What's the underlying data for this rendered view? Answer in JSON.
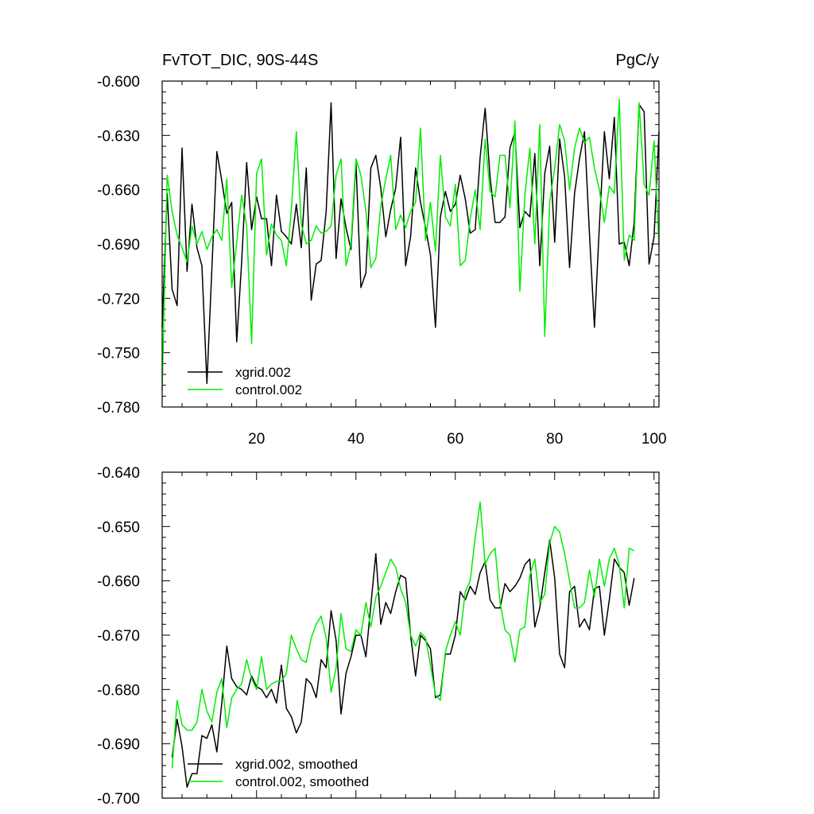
{
  "chart_data": [
    {
      "type": "line",
      "title": "FvTOT_DIC, 90S-44S",
      "units": "PgC/y",
      "xlabel": "",
      "ylabel": "",
      "xlim": [
        1,
        101
      ],
      "ylim": [
        -0.78,
        -0.6
      ],
      "yticks": [
        "-0.600",
        "-0.630",
        "-0.660",
        "-0.690",
        "-0.720",
        "-0.750",
        "-0.780"
      ],
      "xticks": [
        "20",
        "40",
        "60",
        "80",
        "100"
      ],
      "legend_position": "bottom-left",
      "series": [
        {
          "name": "xgrid.002",
          "color": "#000000",
          "x_start": 1,
          "values": [
            -0.736,
            -0.662,
            -0.715,
            -0.724,
            -0.637,
            -0.705,
            -0.668,
            -0.692,
            -0.702,
            -0.767,
            -0.704,
            -0.639,
            -0.655,
            -0.673,
            -0.667,
            -0.744,
            -0.7,
            -0.645,
            -0.682,
            -0.664,
            -0.676,
            -0.676,
            -0.702,
            -0.663,
            -0.683,
            -0.686,
            -0.69,
            -0.668,
            -0.692,
            -0.648,
            -0.721,
            -0.701,
            -0.699,
            -0.672,
            -0.612,
            -0.698,
            -0.665,
            -0.681,
            -0.693,
            -0.645,
            -0.714,
            -0.706,
            -0.648,
            -0.641,
            -0.659,
            -0.686,
            -0.671,
            -0.659,
            -0.631,
            -0.702,
            -0.686,
            -0.648,
            -0.667,
            -0.681,
            -0.696,
            -0.736,
            -0.675,
            -0.661,
            -0.672,
            -0.668,
            -0.652,
            -0.665,
            -0.684,
            -0.682,
            -0.642,
            -0.615,
            -0.653,
            -0.678,
            -0.678,
            -0.675,
            -0.637,
            -0.628,
            -0.681,
            -0.672,
            -0.675,
            -0.64,
            -0.702,
            -0.651,
            -0.636,
            -0.689,
            -0.632,
            -0.653,
            -0.703,
            -0.662,
            -0.643,
            -0.628,
            -0.684,
            -0.736,
            -0.68,
            -0.628,
            -0.654,
            -0.62,
            -0.69,
            -0.689,
            -0.702,
            -0.678,
            -0.613,
            -0.617,
            -0.701,
            -0.686,
            -0.628
          ]
        },
        {
          "name": "control.002",
          "color": "#00ee00",
          "x_start": 1,
          "values": [
            -0.771,
            -0.652,
            -0.672,
            -0.685,
            -0.692,
            -0.7,
            -0.68,
            -0.69,
            -0.683,
            -0.693,
            -0.686,
            -0.682,
            -0.688,
            -0.654,
            -0.714,
            -0.689,
            -0.663,
            -0.68,
            -0.745,
            -0.651,
            -0.643,
            -0.696,
            -0.679,
            -0.685,
            -0.688,
            -0.702,
            -0.671,
            -0.628,
            -0.679,
            -0.69,
            -0.688,
            -0.68,
            -0.684,
            -0.683,
            -0.68,
            -0.652,
            -0.643,
            -0.702,
            -0.69,
            -0.643,
            -0.652,
            -0.672,
            -0.703,
            -0.698,
            -0.669,
            -0.654,
            -0.641,
            -0.682,
            -0.674,
            -0.681,
            -0.672,
            -0.667,
            -0.626,
            -0.688,
            -0.667,
            -0.694,
            -0.641,
            -0.675,
            -0.68,
            -0.657,
            -0.702,
            -0.699,
            -0.676,
            -0.66,
            -0.682,
            -0.632,
            -0.661,
            -0.664,
            -0.641,
            -0.641,
            -0.67,
            -0.622,
            -0.716,
            -0.663,
            -0.637,
            -0.69,
            -0.624,
            -0.741,
            -0.667,
            -0.648,
            -0.624,
            -0.633,
            -0.66,
            -0.637,
            -0.626,
            -0.634,
            -0.631,
            -0.648,
            -0.66,
            -0.678,
            -0.658,
            -0.662,
            -0.61,
            -0.699,
            -0.685,
            -0.688,
            -0.612,
            -0.657,
            -0.663,
            -0.633,
            -0.691
          ]
        }
      ]
    },
    {
      "type": "line",
      "title": "",
      "xlabel": "",
      "ylabel": "",
      "xlim": [
        1,
        101
      ],
      "ylim": [
        -0.7,
        -0.64
      ],
      "yticks": [
        "-0.640",
        "-0.650",
        "-0.660",
        "-0.670",
        "-0.680",
        "-0.690",
        "-0.700"
      ],
      "legend_position": "bottom-left",
      "series": [
        {
          "name": "xgrid.002, smoothed",
          "color": "#000000",
          "x_start": 3,
          "values": [
            -0.6925,
            -0.6855,
            -0.6905,
            -0.698,
            -0.6955,
            -0.6955,
            -0.6885,
            -0.689,
            -0.6865,
            -0.6915,
            -0.6825,
            -0.672,
            -0.678,
            -0.6795,
            -0.68,
            -0.681,
            -0.6775,
            -0.6795,
            -0.68,
            -0.6815,
            -0.68,
            -0.6825,
            -0.6755,
            -0.6835,
            -0.685,
            -0.688,
            -0.686,
            -0.678,
            -0.679,
            -0.6815,
            -0.6745,
            -0.676,
            -0.6655,
            -0.671,
            -0.6845,
            -0.677,
            -0.674,
            -0.67,
            -0.67,
            -0.674,
            -0.6645,
            -0.655,
            -0.668,
            -0.664,
            -0.666,
            -0.662,
            -0.659,
            -0.6595,
            -0.67,
            -0.6775,
            -0.67,
            -0.671,
            -0.6725,
            -0.6815,
            -0.681,
            -0.6735,
            -0.6735,
            -0.67,
            -0.662,
            -0.6635,
            -0.661,
            -0.6625,
            -0.6585,
            -0.6565,
            -0.6635,
            -0.665,
            -0.665,
            -0.6605,
            -0.662,
            -0.661,
            -0.6595,
            -0.657,
            -0.656,
            -0.6685,
            -0.665,
            -0.6585,
            -0.6525,
            -0.6595,
            -0.6735,
            -0.676,
            -0.662,
            -0.661,
            -0.6685,
            -0.667,
            -0.669,
            -0.6615,
            -0.661,
            -0.67,
            -0.6635,
            -0.656,
            -0.6575,
            -0.6585,
            -0.6645,
            -0.6595
          ]
        },
        {
          "name": "control.002, smoothed",
          "color": "#00ee00",
          "x_start": 3,
          "values": [
            -0.6945,
            -0.682,
            -0.6865,
            -0.6875,
            -0.6875,
            -0.686,
            -0.68,
            -0.684,
            -0.686,
            -0.6805,
            -0.678,
            -0.687,
            -0.6815,
            -0.68,
            -0.679,
            -0.6745,
            -0.678,
            -0.68,
            -0.674,
            -0.68,
            -0.679,
            -0.6785,
            -0.6785,
            -0.677,
            -0.67,
            -0.6725,
            -0.6745,
            -0.675,
            -0.6705,
            -0.668,
            -0.6665,
            -0.6705,
            -0.6805,
            -0.676,
            -0.666,
            -0.6725,
            -0.673,
            -0.669,
            -0.67,
            -0.664,
            -0.6685,
            -0.663,
            -0.661,
            -0.6585,
            -0.656,
            -0.6575,
            -0.6615,
            -0.664,
            -0.67,
            -0.672,
            -0.6695,
            -0.6705,
            -0.6755,
            -0.681,
            -0.682,
            -0.673,
            -0.67,
            -0.6675,
            -0.67,
            -0.662,
            -0.66,
            -0.652,
            -0.6455,
            -0.657,
            -0.655,
            -0.654,
            -0.664,
            -0.669,
            -0.67,
            -0.675,
            -0.669,
            -0.6685,
            -0.659,
            -0.656,
            -0.664,
            -0.6625,
            -0.653,
            -0.65,
            -0.651,
            -0.655,
            -0.66,
            -0.665,
            -0.665,
            -0.664,
            -0.658,
            -0.663,
            -0.656,
            -0.661,
            -0.656,
            -0.654,
            -0.657,
            -0.665,
            -0.654,
            -0.6545
          ]
        }
      ]
    }
  ]
}
